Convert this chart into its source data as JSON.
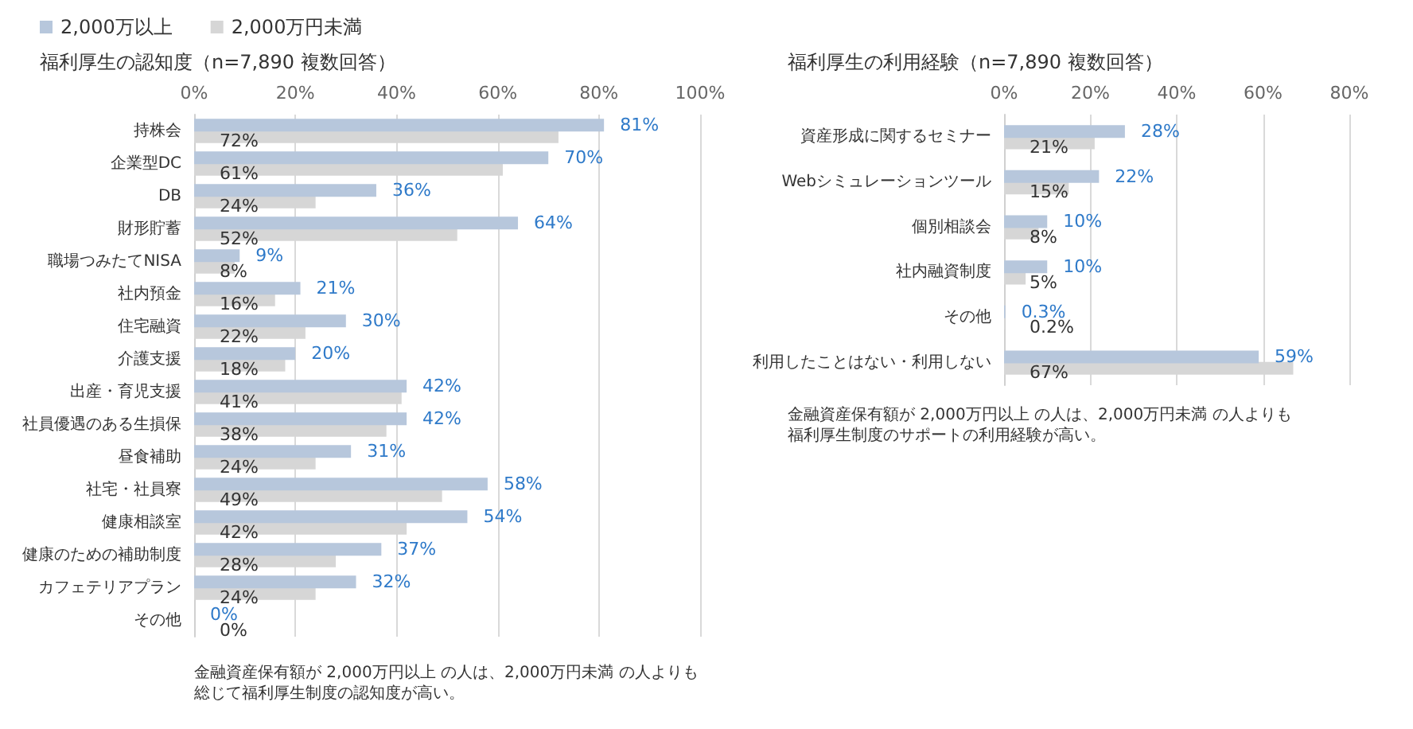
{
  "chart_data": [
    {
      "type": "bar",
      "orientation": "horizontal",
      "title": "福利厚生の認知度（n=7,890 複数回答）",
      "legend": "top left",
      "grid": "x",
      "categories": [
        "持株会",
        "企業型DC",
        "DB",
        "財形貯蓄",
        "職場つみたてNISA",
        "社内預金",
        "住宅融資",
        "介護支援",
        "出産・育児支援",
        "社員優遇のある生損保",
        "昼食補助",
        "社宅・社員寮",
        "健康相談室",
        "健康のための補助制度",
        "カフェテリアプラン",
        "その他"
      ],
      "series": [
        {
          "name": "2,000万以上",
          "color": "#b7c7dc",
          "values": [
            81,
            70,
            36,
            64,
            9,
            21,
            30,
            20,
            42,
            42,
            31,
            58,
            54,
            37,
            32,
            0
          ],
          "value_labels": [
            "81%",
            "70%",
            "36%",
            "64%",
            "9%",
            "21%",
            "30%",
            "20%",
            "42%",
            "42%",
            "31%",
            "58%",
            "54%",
            "37%",
            "32%",
            "0%"
          ]
        },
        {
          "name": "2,000万円未満",
          "color": "#d6d6d6",
          "values": [
            72,
            61,
            24,
            52,
            8,
            16,
            22,
            18,
            41,
            38,
            24,
            49,
            42,
            28,
            24,
            0
          ],
          "value_labels": [
            "72%",
            "61%",
            "24%",
            "52%",
            "8%",
            "16%",
            "22%",
            "18%",
            "41%",
            "38%",
            "24%",
            "49%",
            "42%",
            "28%",
            "24%",
            "0%"
          ]
        }
      ],
      "xlim": [
        0,
        100
      ],
      "xticks": [
        {
          "value": 0,
          "label": "0%"
        },
        {
          "value": 20,
          "label": "20%"
        },
        {
          "value": 40,
          "label": "40%"
        },
        {
          "value": 60,
          "label": "60%"
        },
        {
          "value": 80,
          "label": "80%"
        },
        {
          "value": 100,
          "label": "100%"
        }
      ],
      "annotations": [
        "金融資産保有額が 2,000万円以上 の人は、2,000万円未満 の人よりも",
        "総じて福利厚生制度の認知度が高い。"
      ]
    },
    {
      "type": "bar",
      "orientation": "horizontal",
      "title": "福利厚生の利用経験（n=7,890 複数回答）",
      "grid": "x",
      "categories": [
        "資産形成に関するセミナー",
        "Webシミュレーションツール",
        "個別相談会",
        "社内融資制度",
        "その他",
        "利用したことはない・利用しない"
      ],
      "series": [
        {
          "color": "#b7c7dc",
          "values": [
            28,
            22,
            10,
            10,
            0.3,
            59
          ],
          "value_labels": [
            "28%",
            "22%",
            "10%",
            "10%",
            "0.3%",
            "59%"
          ]
        },
        {
          "color": "#d6d6d6",
          "values": [
            21,
            15,
            8,
            5,
            0.2,
            67
          ],
          "value_labels": [
            "21%",
            "15%",
            "8%",
            "5%",
            "0.2%",
            "67%"
          ]
        }
      ],
      "xlim": [
        0,
        80
      ],
      "xticks": [
        {
          "value": 0,
          "label": "0%"
        },
        {
          "value": 20,
          "label": "20%"
        },
        {
          "value": 40,
          "label": "40%"
        },
        {
          "value": 60,
          "label": "60%"
        },
        {
          "value": 80,
          "label": "80%"
        }
      ],
      "annotations": [
        "金融資産保有額が 2,000万円以上 の人は、2,000万円未満 の人よりも",
        "福利厚生制度のサポートの利用経験が高い。"
      ]
    }
  ]
}
